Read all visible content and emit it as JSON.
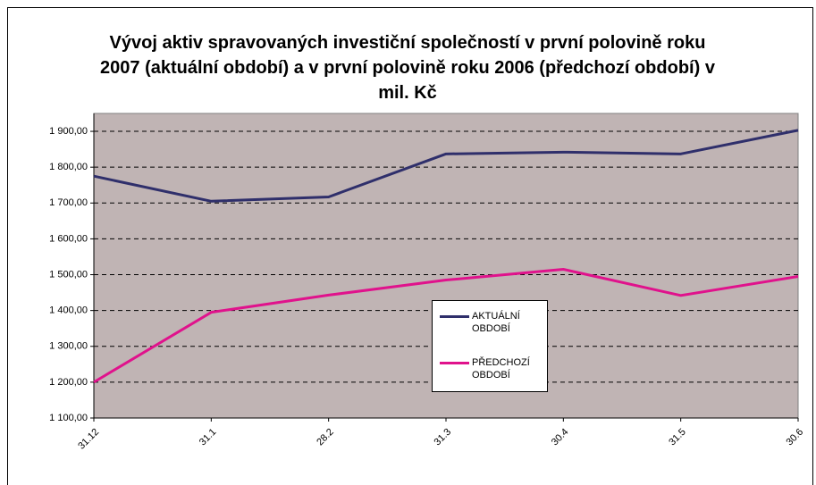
{
  "chart_data": {
    "type": "line",
    "title": "Vývoj aktiv spravovaných investiční společností v první polovině roku 2007 (aktuální období) a v první polovině roku 2006 (předchozí období) v mil. Kč",
    "categories": [
      "31.12",
      "31.1",
      "28.2",
      "31.3",
      "30.4",
      "31.5",
      "30.6"
    ],
    "series": [
      {
        "name": "AKTUÁLNÍ OBDOBÍ",
        "color": "#2f2f6b",
        "values": [
          1775,
          1705,
          1717,
          1837,
          1842,
          1837,
          1903
        ]
      },
      {
        "name": "PŘEDCHOZÍ OBDOBÍ",
        "color": "#e0128c",
        "values": [
          1200,
          1395,
          1443,
          1485,
          1515,
          1442,
          1495
        ]
      }
    ],
    "ylim": [
      1100,
      1950
    ],
    "yticks": [
      {
        "value": 1100,
        "label": "1 100,00"
      },
      {
        "value": 1200,
        "label": "1 200,00"
      },
      {
        "value": 1300,
        "label": "1 300,00"
      },
      {
        "value": 1400,
        "label": "1 400,00"
      },
      {
        "value": 1500,
        "label": "1 500,00"
      },
      {
        "value": 1600,
        "label": "1 600,00"
      },
      {
        "value": 1700,
        "label": "1 700,00"
      },
      {
        "value": 1800,
        "label": "1 800,00"
      },
      {
        "value": 1900,
        "label": "1 900,00"
      }
    ],
    "grid": true
  }
}
